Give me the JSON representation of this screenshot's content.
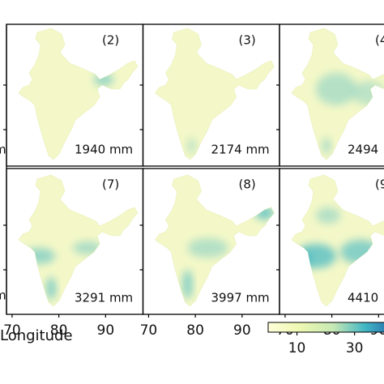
{
  "panels": [
    {
      "label": "(2)",
      "total": "1940 mm"
    },
    {
      "label": "(3)",
      "total": "2174 mm"
    },
    {
      "label": "(4",
      "total": "2494"
    },
    {
      "label": "(7)",
      "total": "3291 mm"
    },
    {
      "label": "(8)",
      "total": "3997 mm"
    },
    {
      "label": "(9",
      "total": "4410"
    }
  ],
  "left_partial_labels": [
    "m",
    "m"
  ],
  "x_axis": {
    "label": "Longitude",
    "ticks": [
      70,
      80,
      90
    ],
    "lim": [
      68.8,
      98
    ]
  },
  "colorbar": {
    "ticks": [
      10,
      30
    ],
    "lim": [
      0,
      45
    ]
  }
}
